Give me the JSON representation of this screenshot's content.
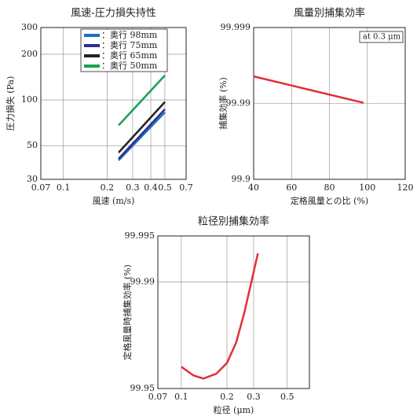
{
  "chart_data": [
    {
      "type": "line",
      "title": "風速-圧力損失持性",
      "xlabel": "風速 (m/s)",
      "ylabel": "圧力損失 (Pa)",
      "xscale": "log",
      "yscale": "log",
      "xlim": [
        0.07,
        0.7
      ],
      "xticks": [
        0.07,
        0.1,
        0.2,
        0.3,
        0.4,
        0.5,
        0.7
      ],
      "ylim": [
        30,
        300
      ],
      "yticks": [
        30,
        50,
        100,
        200,
        300
      ],
      "grid": true,
      "legend": "top-right",
      "x": [
        0.24,
        0.5
      ],
      "series": [
        {
          "name": "：奥行 98mm",
          "color": "#1f6fc4",
          "values": [
            40,
            83
          ]
        },
        {
          "name": "：奥行 75mm",
          "color": "#2b2f8a",
          "values": [
            41,
            87
          ]
        },
        {
          "name": "：奥行 65mm",
          "color": "#222222",
          "values": [
            45,
            97
          ]
        },
        {
          "name": "：奥行 50mm",
          "color": "#1aa050",
          "values": [
            68,
            145
          ]
        }
      ]
    },
    {
      "type": "line",
      "title": "風量別捕集効率",
      "xlabel": "定格風量との比 (%)",
      "ylabel": "捕集効率 (%)",
      "annotation": "at 0.3 μm",
      "xscale": "linear",
      "yscale": "penetration-log",
      "xlim": [
        40,
        120
      ],
      "xticks": [
        40,
        60,
        80,
        100,
        120
      ],
      "ylim": [
        99.9,
        99.999
      ],
      "yticks": [
        99.9,
        99.99,
        99.999
      ],
      "grid": true,
      "x": [
        40,
        98
      ],
      "series": [
        {
          "color": "#e0303a",
          "values": [
            99.9956,
            99.9902
          ]
        }
      ]
    },
    {
      "type": "line",
      "title": "粒径別捕集効率",
      "xlabel": "粒径 (μm)",
      "ylabel": "定格風量時捕集効率 (%)",
      "xscale": "log",
      "yscale": "penetration-log",
      "xlim": [
        0.07,
        0.7
      ],
      "xticks": [
        0.07,
        0.1,
        0.2,
        0.3,
        0.5
      ],
      "ylim": [
        99.95,
        99.995
      ],
      "yticks": [
        99.95,
        99.99,
        99.995
      ],
      "grid": true,
      "x": [
        0.1,
        0.12,
        0.14,
        0.17,
        0.2,
        0.23,
        0.26,
        0.29,
        0.32
      ],
      "series": [
        {
          "color": "#e0303a",
          "values": [
            99.964,
            99.959,
            99.957,
            99.96,
            99.966,
            99.975,
            99.984,
            99.99,
            99.9935
          ]
        }
      ]
    }
  ]
}
